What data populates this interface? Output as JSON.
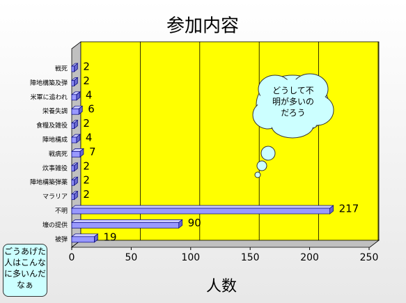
{
  "chart_data": {
    "type": "bar",
    "orientation": "horizontal",
    "title": "参加内容",
    "x_label": "人数",
    "categories": [
      "戦死",
      "陣地構築及弾",
      "米軍に追われ",
      "栄養失調",
      "食糧及雑役",
      "陣地構成",
      "戦病死",
      "炊事雑役",
      "陣地構築弾薬",
      "マラリア",
      "不明",
      "壕の提供",
      "被弾"
    ],
    "values": [
      2,
      2,
      4,
      6,
      2,
      4,
      7,
      2,
      2,
      2,
      217,
      90,
      19
    ],
    "color": "#9999ff",
    "xlim": [
      0,
      250
    ],
    "xticks": [
      0,
      50,
      100,
      150,
      200,
      250
    ],
    "grid": true,
    "annotations": [
      "どうして不明が多いのだろう",
      "ごうあげた人はこんなに多いんだなぁ"
    ]
  }
}
